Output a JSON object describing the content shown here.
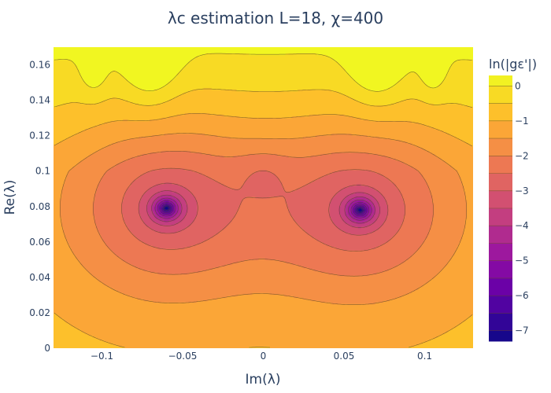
{
  "chart_data": {
    "type": "contour",
    "title": "λc estimation L=18, χ=400",
    "xlabel": "Im(λ)",
    "ylabel": "Re(λ)",
    "xlim": [
      -0.13,
      0.13
    ],
    "ylim": [
      0,
      0.17
    ],
    "x_ticks": [
      -0.1,
      -0.05,
      0,
      0.05,
      0.1
    ],
    "x_tick_labels": [
      "−0.1",
      "−0.05",
      "0",
      "0.05",
      "0.1"
    ],
    "y_ticks": [
      0,
      0.02,
      0.04,
      0.06,
      0.08,
      0.1,
      0.12,
      0.14,
      0.16
    ],
    "y_tick_labels": [
      "0",
      "0.02",
      "0.04",
      "0.06",
      "0.08",
      "0.1",
      "0.12",
      "0.14",
      "0.16"
    ],
    "colorbar": {
      "title": "ln(|gε'|)",
      "range": [
        -7.3,
        0.3
      ],
      "ticks": [
        0,
        -1,
        -2,
        -3,
        -4,
        -5,
        -6,
        -7
      ],
      "tick_labels": [
        "0",
        "−1",
        "−2",
        "−3",
        "−4",
        "−5",
        "−6",
        "−7"
      ]
    },
    "contour_levels": [
      -7,
      -6.5,
      -6,
      -5.5,
      -5,
      -4.5,
      -4,
      -3.5,
      -3,
      -2.5,
      -2,
      -1.5,
      -1,
      -0.5,
      0
    ],
    "minima": [
      {
        "im": -0.06,
        "re": 0.079,
        "value": -7.2
      },
      {
        "im": 0.06,
        "re": 0.078,
        "value": -7.2
      }
    ],
    "colorscale": [
      "#0d0887",
      "#46039f",
      "#7201a8",
      "#9c179e",
      "#bd3786",
      "#d8576b",
      "#ed7953",
      "#fb9f3a",
      "#fdca26",
      "#f0f921"
    ]
  }
}
